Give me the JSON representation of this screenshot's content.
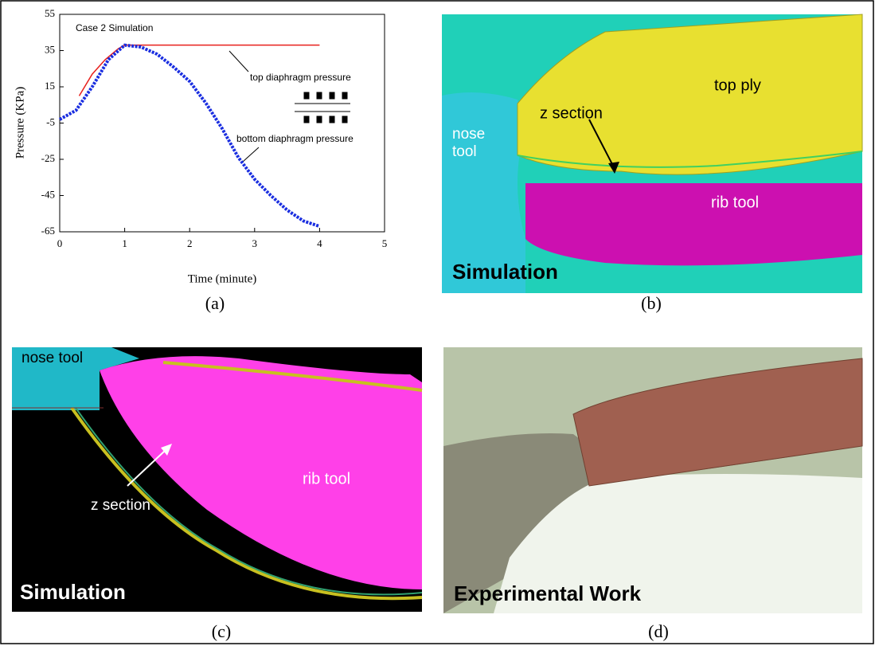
{
  "chart_data": {
    "type": "line",
    "title": "Case 2 Simulation",
    "x_label": "Time (minute)",
    "y_label": "Pressure (KPa)",
    "xlim": [
      0,
      5
    ],
    "ylim": [
      -65,
      55
    ],
    "xticks": [
      0,
      1,
      2,
      3,
      4,
      5
    ],
    "yticks": [
      -65,
      -45,
      -25,
      -5,
      15,
      35,
      55
    ],
    "series": [
      {
        "name": "top diaphragm pressure",
        "color": "#e8201c",
        "mode": "line",
        "x": [
          0.3,
          0.5,
          0.7,
          0.9,
          1,
          4
        ],
        "values": [
          10,
          22,
          30,
          36,
          38,
          38
        ]
      },
      {
        "name": "bottom diaphragm pressure",
        "color": "#1a2ee0",
        "mode": "markers",
        "x": [
          0,
          0.25,
          0.5,
          0.75,
          1,
          1.25,
          1.5,
          1.75,
          2,
          2.25,
          2.5,
          2.75,
          3,
          3.25,
          3.5,
          3.75,
          4
        ],
        "values": [
          -3,
          2,
          15,
          30,
          38,
          37,
          33,
          26,
          18,
          6,
          -8,
          -24,
          -36,
          -45,
          -53,
          -59,
          -62
        ]
      }
    ],
    "caption": "(a)"
  },
  "panels": [
    {
      "caption": "(b)",
      "labels": [
        "top ply",
        "z section",
        "nose tool",
        "rib tool",
        "Simulation"
      ]
    },
    {
      "caption": "(c)",
      "labels": [
        "nose tool",
        "rib tool",
        "z section",
        "Simulation"
      ]
    },
    {
      "caption": "(d)",
      "labels": [
        "Experimental Work"
      ]
    }
  ]
}
